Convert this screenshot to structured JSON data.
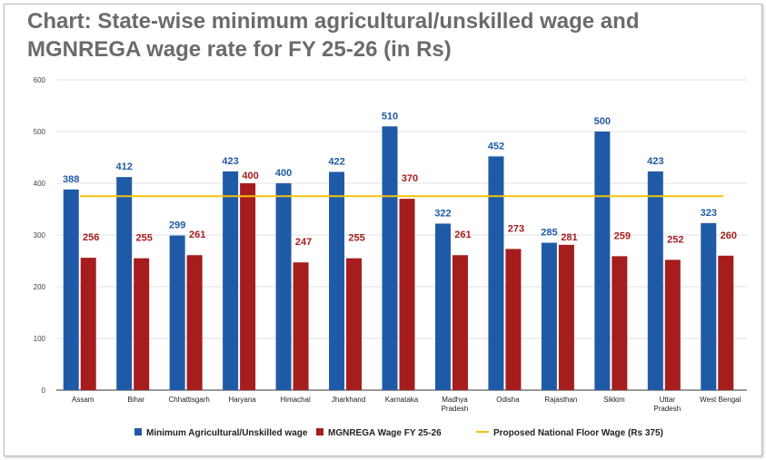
{
  "chart_data": {
    "type": "bar",
    "title": "Chart: State-wise minimum agricultural/unskilled wage and MGNREGA wage rate for FY 25-26 (in Rs)",
    "categories": [
      [
        "Assam"
      ],
      [
        "Bihar"
      ],
      [
        "Chhattisgarh"
      ],
      [
        "Haryana"
      ],
      [
        "Himachal"
      ],
      [
        "Jharkhand"
      ],
      [
        "Karnataka"
      ],
      [
        "Madhya",
        "Pradesh"
      ],
      [
        "Odisha"
      ],
      [
        "Rajasthan"
      ],
      [
        "Sikkim"
      ],
      [
        "Uttar",
        "Pradesh"
      ],
      [
        "West Bengal"
      ]
    ],
    "series": [
      {
        "name": "Minimum Agricultural/Unskilled wage",
        "color": "#1f5aa6",
        "values": [
          388,
          412,
          299,
          423,
          400,
          422,
          510,
          322,
          452,
          285,
          500,
          423,
          323
        ]
      },
      {
        "name": "MGNREGA Wage FY 25-26",
        "color": "#a51d1d",
        "values": [
          256,
          255,
          261,
          400,
          247,
          255,
          370,
          261,
          273,
          281,
          259,
          252,
          260
        ]
      }
    ],
    "reference_line": {
      "name": "Proposed National Floor Wage (Rs 375)",
      "value": 375,
      "color": "#f2c20f"
    },
    "yticks": [
      0,
      100,
      200,
      300,
      400,
      500,
      600
    ],
    "ylim": [
      0,
      600
    ],
    "xlabel": "",
    "ylabel": "",
    "grid": true,
    "legend_position": "bottom"
  }
}
